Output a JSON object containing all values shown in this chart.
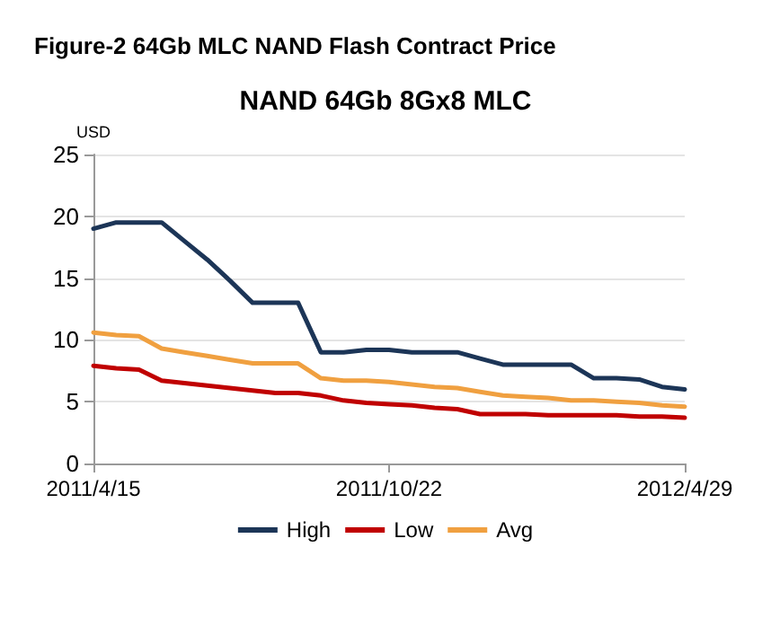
{
  "chart_data": {
    "type": "line",
    "title": "Figure-2 64Gb MLC NAND Flash Contract Price",
    "subtitle": "NAND 64Gb 8Gx8 MLC",
    "ylabel": "USD",
    "categories": [
      "2011/4/15",
      null,
      null,
      null,
      null,
      null,
      null,
      null,
      null,
      null,
      null,
      null,
      null,
      "2011/10/22",
      null,
      null,
      null,
      null,
      null,
      null,
      null,
      null,
      null,
      null,
      null,
      null,
      "2012/4/29"
    ],
    "series": [
      {
        "name": "High",
        "color": "#1c3557",
        "values": [
          19,
          19.5,
          19.5,
          19.5,
          18,
          16.5,
          14.8,
          13,
          13,
          13,
          9,
          9,
          9.2,
          9.2,
          9,
          9,
          9,
          8.5,
          8,
          8,
          8,
          8,
          6.9,
          6.9,
          6.8,
          6.2,
          6
        ]
      },
      {
        "name": "Low",
        "color": "#c00000",
        "values": [
          7.9,
          7.7,
          7.6,
          6.7,
          6.5,
          6.3,
          6.1,
          5.9,
          5.7,
          5.7,
          5.5,
          5.1,
          4.9,
          4.8,
          4.7,
          4.5,
          4.4,
          4,
          4,
          4,
          3.9,
          3.9,
          3.9,
          3.9,
          3.8,
          3.8,
          3.7
        ]
      },
      {
        "name": "Avg",
        "color": "#f0a040",
        "values": [
          10.6,
          10.4,
          10.3,
          9.3,
          9,
          8.7,
          8.4,
          8.1,
          8.1,
          8.1,
          6.9,
          6.7,
          6.7,
          6.6,
          6.4,
          6.2,
          6.1,
          5.8,
          5.5,
          5.4,
          5.3,
          5.1,
          5.1,
          5,
          4.9,
          4.7,
          4.6
        ]
      }
    ],
    "ylim": [
      0,
      25
    ],
    "yticks": [
      0,
      5,
      10,
      15,
      20,
      25
    ],
    "grid": "y",
    "legend": "bottom",
    "marker": "none",
    "line_style": "solid"
  }
}
